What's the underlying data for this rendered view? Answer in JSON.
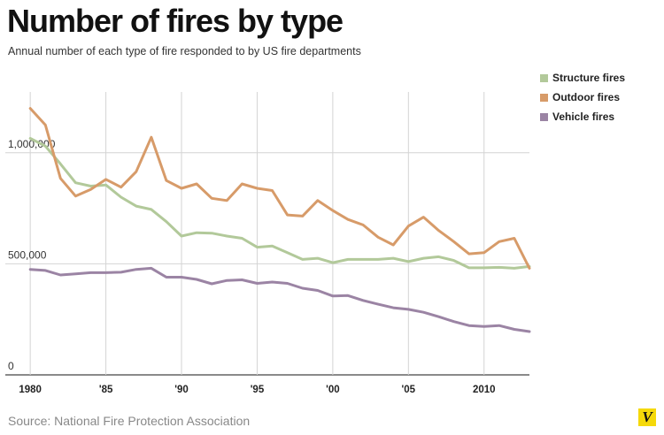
{
  "title": "Number of fires by type",
  "subtitle": "Annual number of each type of fire responded to by US fire departments",
  "source": "Source: National Fire Protection Association",
  "logo_text": "V",
  "logo_color": "#f5d90a",
  "chart_data": {
    "type": "line",
    "x": [
      1980,
      1981,
      1982,
      1983,
      1984,
      1985,
      1986,
      1987,
      1988,
      1989,
      1990,
      1991,
      1992,
      1993,
      1994,
      1995,
      1996,
      1997,
      1998,
      1999,
      2000,
      2001,
      2002,
      2003,
      2004,
      2005,
      2006,
      2007,
      2008,
      2009,
      2010,
      2011,
      2012,
      2013
    ],
    "xlim": [
      1978,
      2013
    ],
    "ylim": [
      0,
      1250000
    ],
    "grid": true,
    "legend_position": "top-right",
    "x_ticks": [
      {
        "value": 1980,
        "label": "1980"
      },
      {
        "value": 1985,
        "label": "'85"
      },
      {
        "value": 1990,
        "label": "'90"
      },
      {
        "value": 1995,
        "label": "'95"
      },
      {
        "value": 2000,
        "label": "'00"
      },
      {
        "value": 2005,
        "label": "'05"
      },
      {
        "value": 2010,
        "label": "2010"
      }
    ],
    "y_ticks": [
      {
        "value": 0,
        "label": "0"
      },
      {
        "value": 500000,
        "label": "500,000"
      },
      {
        "value": 1000000,
        "label": "1,000,000"
      }
    ],
    "series": [
      {
        "name": "Structure fires",
        "color": "#b2c99a",
        "values": [
          1065000,
          1030000,
          950000,
          865000,
          850000,
          855000,
          800000,
          760000,
          745000,
          690000,
          625000,
          640000,
          638000,
          625000,
          615000,
          575000,
          580000,
          550000,
          520000,
          525000,
          505000,
          520000,
          520000,
          520000,
          525000,
          510000,
          525000,
          532000,
          515000,
          482000,
          482000,
          484000,
          480000,
          488000
        ]
      },
      {
        "name": "Outdoor fires",
        "color": "#d79b69",
        "values": [
          1200000,
          1125000,
          885000,
          805000,
          835000,
          880000,
          845000,
          915000,
          1070000,
          875000,
          840000,
          860000,
          795000,
          785000,
          860000,
          840000,
          830000,
          720000,
          715000,
          785000,
          740000,
          700000,
          675000,
          620000,
          585000,
          670000,
          710000,
          650000,
          600000,
          545000,
          550000,
          600000,
          615000,
          480000
        ]
      },
      {
        "name": "Vehicle fires",
        "color": "#9b84a4",
        "values": [
          475000,
          470000,
          450000,
          455000,
          460000,
          460000,
          462000,
          475000,
          480000,
          440000,
          440000,
          430000,
          410000,
          425000,
          428000,
          412000,
          418000,
          412000,
          390000,
          380000,
          355000,
          357000,
          335000,
          318000,
          302000,
          295000,
          282000,
          262000,
          240000,
          222000,
          218000,
          222000,
          205000,
          195000
        ]
      }
    ]
  }
}
